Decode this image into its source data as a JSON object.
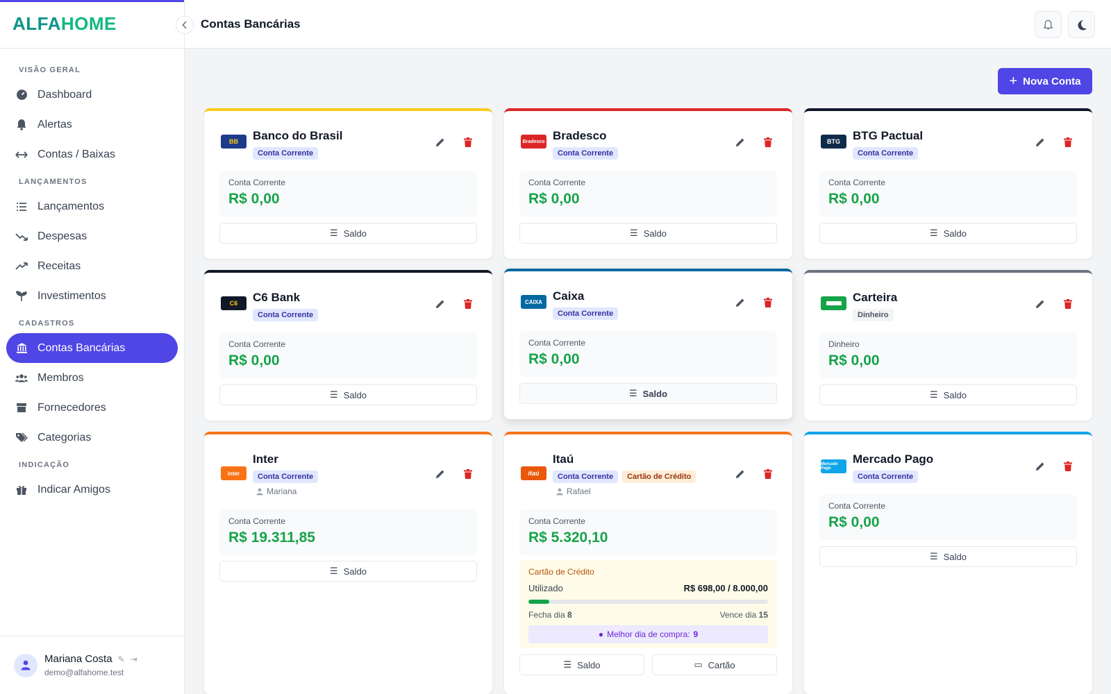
{
  "brand": {
    "part1": "ALFA",
    "part2": "HOME"
  },
  "header": {
    "title": "Contas Bancárias"
  },
  "sidebar": {
    "sections": [
      {
        "label": "VISÃO GERAL",
        "items": [
          "Dashboard",
          "Alertas",
          "Contas / Baixas"
        ]
      },
      {
        "label": "LANÇAMENTOS",
        "items": [
          "Lançamentos",
          "Despesas",
          "Receitas",
          "Investimentos"
        ]
      },
      {
        "label": "CADASTROS",
        "items": [
          "Contas Bancárias",
          "Membros",
          "Fornecedores",
          "Categorias"
        ]
      },
      {
        "label": "INDICAÇÃO",
        "items": [
          "Indicar Amigos"
        ]
      }
    ],
    "active_item": "Contas Bancárias"
  },
  "user": {
    "name": "Mariana Costa",
    "email": "demo@alfahome.test"
  },
  "actions": {
    "new_account": "Nova Conta",
    "saldo": "Saldo",
    "cartao": "Cartão"
  },
  "colors": {
    "accent": "#4f46e5",
    "positive": "#16a34a",
    "danger": "#dc2626"
  },
  "cards": [
    {
      "name": "Banco do Brasil",
      "logo": "BB",
      "tags": [
        "Conta Corrente"
      ],
      "balance_label": "Conta Corrente",
      "balance": "R$ 0,00",
      "accent": "#facc15"
    },
    {
      "name": "Bradesco",
      "logo": "Bradesco",
      "tags": [
        "Conta Corrente"
      ],
      "balance_label": "Conta Corrente",
      "balance": "R$ 0,00",
      "accent": "#dc2626"
    },
    {
      "name": "BTG Pactual",
      "logo": "BTG",
      "tags": [
        "Conta Corrente"
      ],
      "balance_label": "Conta Corrente",
      "balance": "R$ 0,00",
      "accent": "#0f172a"
    },
    {
      "name": "C6 Bank",
      "logo": "C6",
      "tags": [
        "Conta Corrente"
      ],
      "balance_label": "Conta Corrente",
      "balance": "R$ 0,00",
      "accent": "#111827"
    },
    {
      "name": "Caixa",
      "logo": "CAIXA",
      "tags": [
        "Conta Corrente"
      ],
      "balance_label": "Conta Corrente",
      "balance": "R$ 0,00",
      "accent": "#0369a1"
    },
    {
      "name": "Carteira",
      "logo": "",
      "tags": [
        "Dinheiro"
      ],
      "balance_label": "Dinheiro",
      "balance": "R$ 0,00",
      "accent": "#6b7280"
    },
    {
      "name": "Inter",
      "logo": "inter",
      "tags": [
        "Conta Corrente"
      ],
      "owner": "Mariana",
      "balance_label": "Conta Corrente",
      "balance": "R$ 19.311,85",
      "accent": "#f97316"
    },
    {
      "name": "Itaú",
      "logo": "itaú",
      "tags": [
        "Conta Corrente",
        "Cartão de Crédito"
      ],
      "owner": "Rafael",
      "balance_label": "Conta Corrente",
      "balance": "R$ 5.320,10",
      "accent": "#f97316",
      "credit": {
        "title": "Cartão de Crédito",
        "used_label": "Utilizado",
        "used_value": "R$ 698,00 / 8.000,00",
        "used_fraction": 0.087,
        "close_label": "Fecha dia",
        "close_day": "8",
        "due_label": "Vence dia",
        "due_day": "15",
        "tip_label": "Melhor dia de compra:",
        "tip_day": "9"
      }
    },
    {
      "name": "Mercado Pago",
      "logo": "Mercado Pago",
      "tags": [
        "Conta Corrente"
      ],
      "balance_label": "Conta Corrente",
      "balance": "R$ 0,00",
      "accent": "#0ea5e9"
    }
  ]
}
